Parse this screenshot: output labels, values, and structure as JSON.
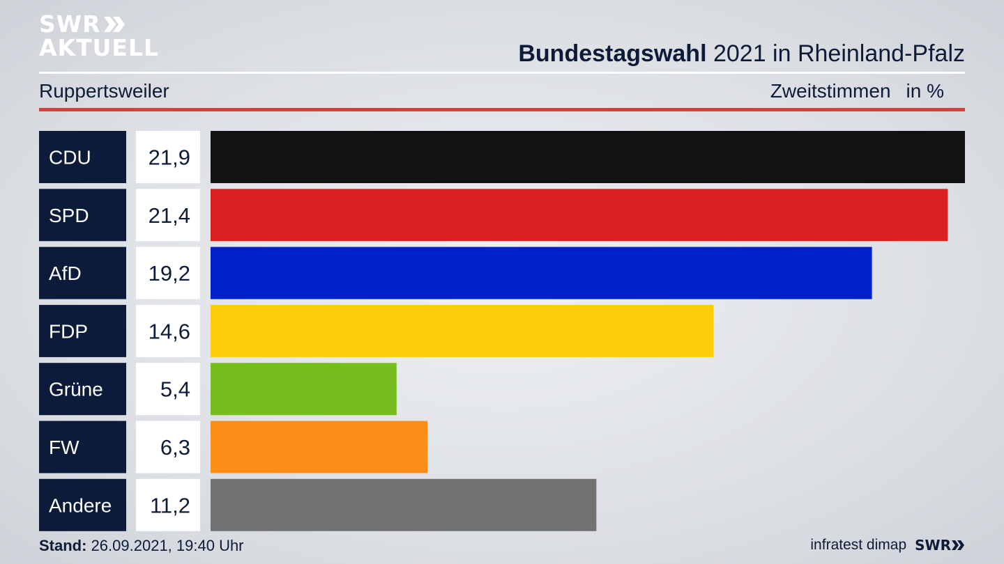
{
  "logo": {
    "line1": "SWR",
    "line2": "AKTUELL"
  },
  "header": {
    "title_bold": "Bundestagswahl",
    "title_rest": " 2021 in Rheinland-Pfalz"
  },
  "subheader": {
    "location": "Ruppertsweiler",
    "vote_type": "Zweitstimmen",
    "unit": "in %"
  },
  "footer": {
    "stand_label": "Stand:",
    "stand_value": " 26.09.2021, 19:40 Uhr",
    "source": "infratest dimap",
    "logo": "SWR"
  },
  "colors": {
    "label_bg": "#0c1b3a",
    "value_bg": "#ffffff",
    "accent_red": "#d2413a"
  },
  "chart_data": {
    "type": "bar",
    "orientation": "horizontal",
    "categories": [
      "CDU",
      "SPD",
      "AfD",
      "FDP",
      "Grüne",
      "FW",
      "Andere"
    ],
    "values": [
      21.9,
      21.4,
      19.2,
      14.6,
      5.4,
      6.3,
      11.2
    ],
    "value_labels": [
      "21,9",
      "21,4",
      "19,2",
      "14,6",
      "5,4",
      "6,3",
      "11,2"
    ],
    "colors": [
      "#121212",
      "#d82020",
      "#0020c8",
      "#fdcc0a",
      "#78bd1e",
      "#fd8d17",
      "#727272"
    ],
    "xlim": [
      0,
      21.9
    ],
    "grid": false,
    "legend": "none"
  }
}
